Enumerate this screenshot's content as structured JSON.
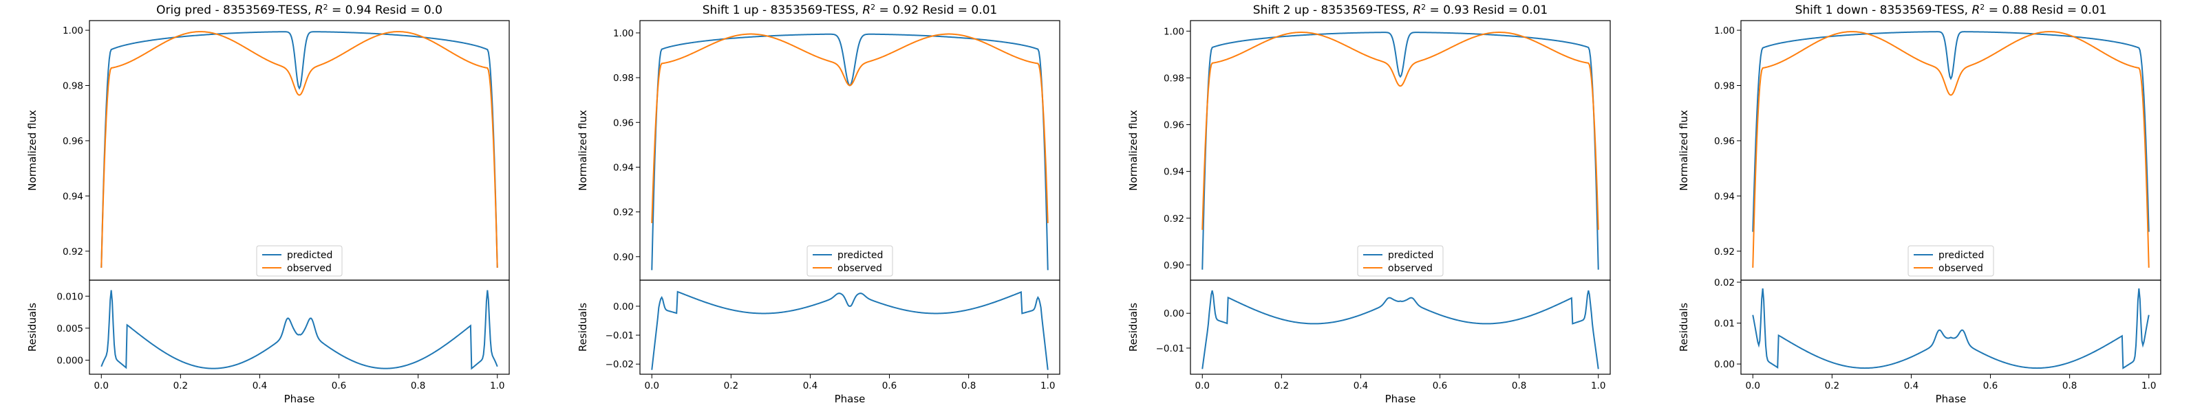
{
  "colors": {
    "predicted": "#1f77b4",
    "observed": "#ff7f0e"
  },
  "legend": {
    "predicted": "predicted",
    "observed": "observed"
  },
  "chart_data": [
    {
      "type": "line",
      "title": "Orig pred - 8353569-TESS, R² = 0.94 Resid = 0.0",
      "title_parts": {
        "pre": "Orig pred - 8353569-TESS, ",
        "r2": "0.94",
        "resid": "0.0"
      },
      "xlabel": "Phase",
      "ylabel": "Normalized flux",
      "residual_ylabel": "Residuals",
      "xlim": [
        -0.03,
        1.03
      ],
      "xticks": [
        0.0,
        0.2,
        0.4,
        0.6,
        0.8,
        1.0
      ],
      "ylim": [
        0.9095,
        1.0035
      ],
      "yticks": [
        0.92,
        0.94,
        0.96,
        0.98,
        1.0
      ],
      "residual_ylim": [
        -0.0022,
        0.0125
      ],
      "residual_yticks": [
        0.0,
        0.005,
        0.01
      ],
      "legend_position": "lower center",
      "grid": false,
      "series": [
        {
          "name": "predicted",
          "ingress": 0.914,
          "shoulder": 0.9885,
          "peak": 0.9995,
          "eclipse_min": 0.979,
          "eclipse_width": 0.013,
          "profile": "flat"
        },
        {
          "name": "observed",
          "ingress": 0.914,
          "shoulder": 0.986,
          "peak": 0.9995,
          "eclipse_min": 0.9765,
          "eclipse_width": 0.02,
          "profile": "double"
        }
      ],
      "residuals": {
        "edge_start": -0.001,
        "edge_spike": 0.0122,
        "shoulder": 0.002,
        "trough": -0.0013,
        "center": 0.0055,
        "bump": 0.008,
        "center_dip": 0.004
      }
    },
    {
      "type": "line",
      "title": "Shift 1 up - 8353569-TESS, R² = 0.92 Resid = 0.01",
      "title_parts": {
        "pre": "Shift 1 up - 8353569-TESS, ",
        "r2": "0.92",
        "resid": "0.01"
      },
      "xlabel": "Phase",
      "ylabel": "Normalized flux",
      "residual_ylabel": "Residuals",
      "xlim": [
        -0.03,
        1.03
      ],
      "xticks": [
        0.0,
        0.2,
        0.4,
        0.6,
        0.8,
        1.0
      ],
      "ylim": [
        0.8895,
        1.0055
      ],
      "yticks": [
        0.9,
        0.92,
        0.94,
        0.96,
        0.98,
        1.0
      ],
      "residual_ylim": [
        -0.0235,
        0.009
      ],
      "residual_yticks": [
        -0.02,
        -0.01,
        0.0
      ],
      "legend_position": "lower center",
      "grid": false,
      "series": [
        {
          "name": "predicted",
          "ingress": 0.894,
          "shoulder": 0.988,
          "peak": 0.9995,
          "eclipse_min": 0.9765,
          "eclipse_width": 0.018,
          "profile": "flat"
        },
        {
          "name": "observed",
          "ingress": 0.915,
          "shoulder": 0.986,
          "peak": 0.9995,
          "eclipse_min": 0.9765,
          "eclipse_width": 0.02,
          "profile": "double"
        }
      ],
      "residuals": {
        "edge_start": -0.022,
        "edge_spike": 0.004,
        "shoulder": 0.0,
        "trough": -0.0025,
        "center": 0.005,
        "bump": 0.006,
        "center_dip": 0.0
      }
    },
    {
      "type": "line",
      "title": "Shift 2 up - 8353569-TESS, R² = 0.93 Resid = 0.01",
      "title_parts": {
        "pre": "Shift 2 up - 8353569-TESS, ",
        "r2": "0.93",
        "resid": "0.01"
      },
      "xlabel": "Phase",
      "ylabel": "Normalized flux",
      "residual_ylabel": "Residuals",
      "xlim": [
        -0.03,
        1.03
      ],
      "xticks": [
        0.0,
        0.2,
        0.4,
        0.6,
        0.8,
        1.0
      ],
      "ylim": [
        0.8935,
        1.0045
      ],
      "yticks": [
        0.9,
        0.92,
        0.94,
        0.96,
        0.98,
        1.0
      ],
      "residual_ylim": [
        -0.0175,
        0.0095
      ],
      "residual_yticks": [
        -0.01,
        0.0
      ],
      "legend_position": "lower center",
      "grid": false,
      "series": [
        {
          "name": "predicted",
          "ingress": 0.898,
          "shoulder": 0.9885,
          "peak": 0.9995,
          "eclipse_min": 0.9805,
          "eclipse_width": 0.014,
          "profile": "flat"
        },
        {
          "name": "observed",
          "ingress": 0.915,
          "shoulder": 0.986,
          "peak": 0.9995,
          "eclipse_min": 0.9765,
          "eclipse_width": 0.02,
          "profile": "double"
        }
      ],
      "residuals": {
        "edge_start": -0.016,
        "edge_spike": 0.0075,
        "shoulder": -0.0005,
        "trough": -0.003,
        "center": 0.0045,
        "bump": 0.006,
        "center_dip": 0.0035
      }
    },
    {
      "type": "line",
      "title": "Shift 1 down - 8353569-TESS, R² = 0.88 Resid = 0.01",
      "title_parts": {
        "pre": "Shift 1 down - 8353569-TESS, ",
        "r2": "0.88",
        "resid": "0.01"
      },
      "xlabel": "Phase",
      "ylabel": "Normalized flux",
      "residual_ylabel": "Residuals",
      "xlim": [
        -0.03,
        1.03
      ],
      "xticks": [
        0.0,
        0.2,
        0.4,
        0.6,
        0.8,
        1.0
      ],
      "ylim": [
        0.9095,
        1.0035
      ],
      "yticks": [
        0.92,
        0.94,
        0.96,
        0.98,
        1.0
      ],
      "residual_ylim": [
        -0.0025,
        0.0205
      ],
      "residual_yticks": [
        0.0,
        0.01,
        0.02
      ],
      "legend_position": "lower center",
      "grid": false,
      "series": [
        {
          "name": "predicted",
          "ingress": 0.927,
          "shoulder": 0.9895,
          "peak": 0.9995,
          "eclipse_min": 0.9825,
          "eclipse_width": 0.012,
          "profile": "flat"
        },
        {
          "name": "observed",
          "ingress": 0.914,
          "shoulder": 0.986,
          "peak": 0.9995,
          "eclipse_min": 0.9765,
          "eclipse_width": 0.02,
          "profile": "double"
        }
      ],
      "residuals": {
        "edge_start": 0.012,
        "edge_spike": 0.02,
        "shoulder": 0.003,
        "trough": -0.001,
        "center": 0.007,
        "bump": 0.01,
        "center_dip": 0.0065
      }
    }
  ]
}
